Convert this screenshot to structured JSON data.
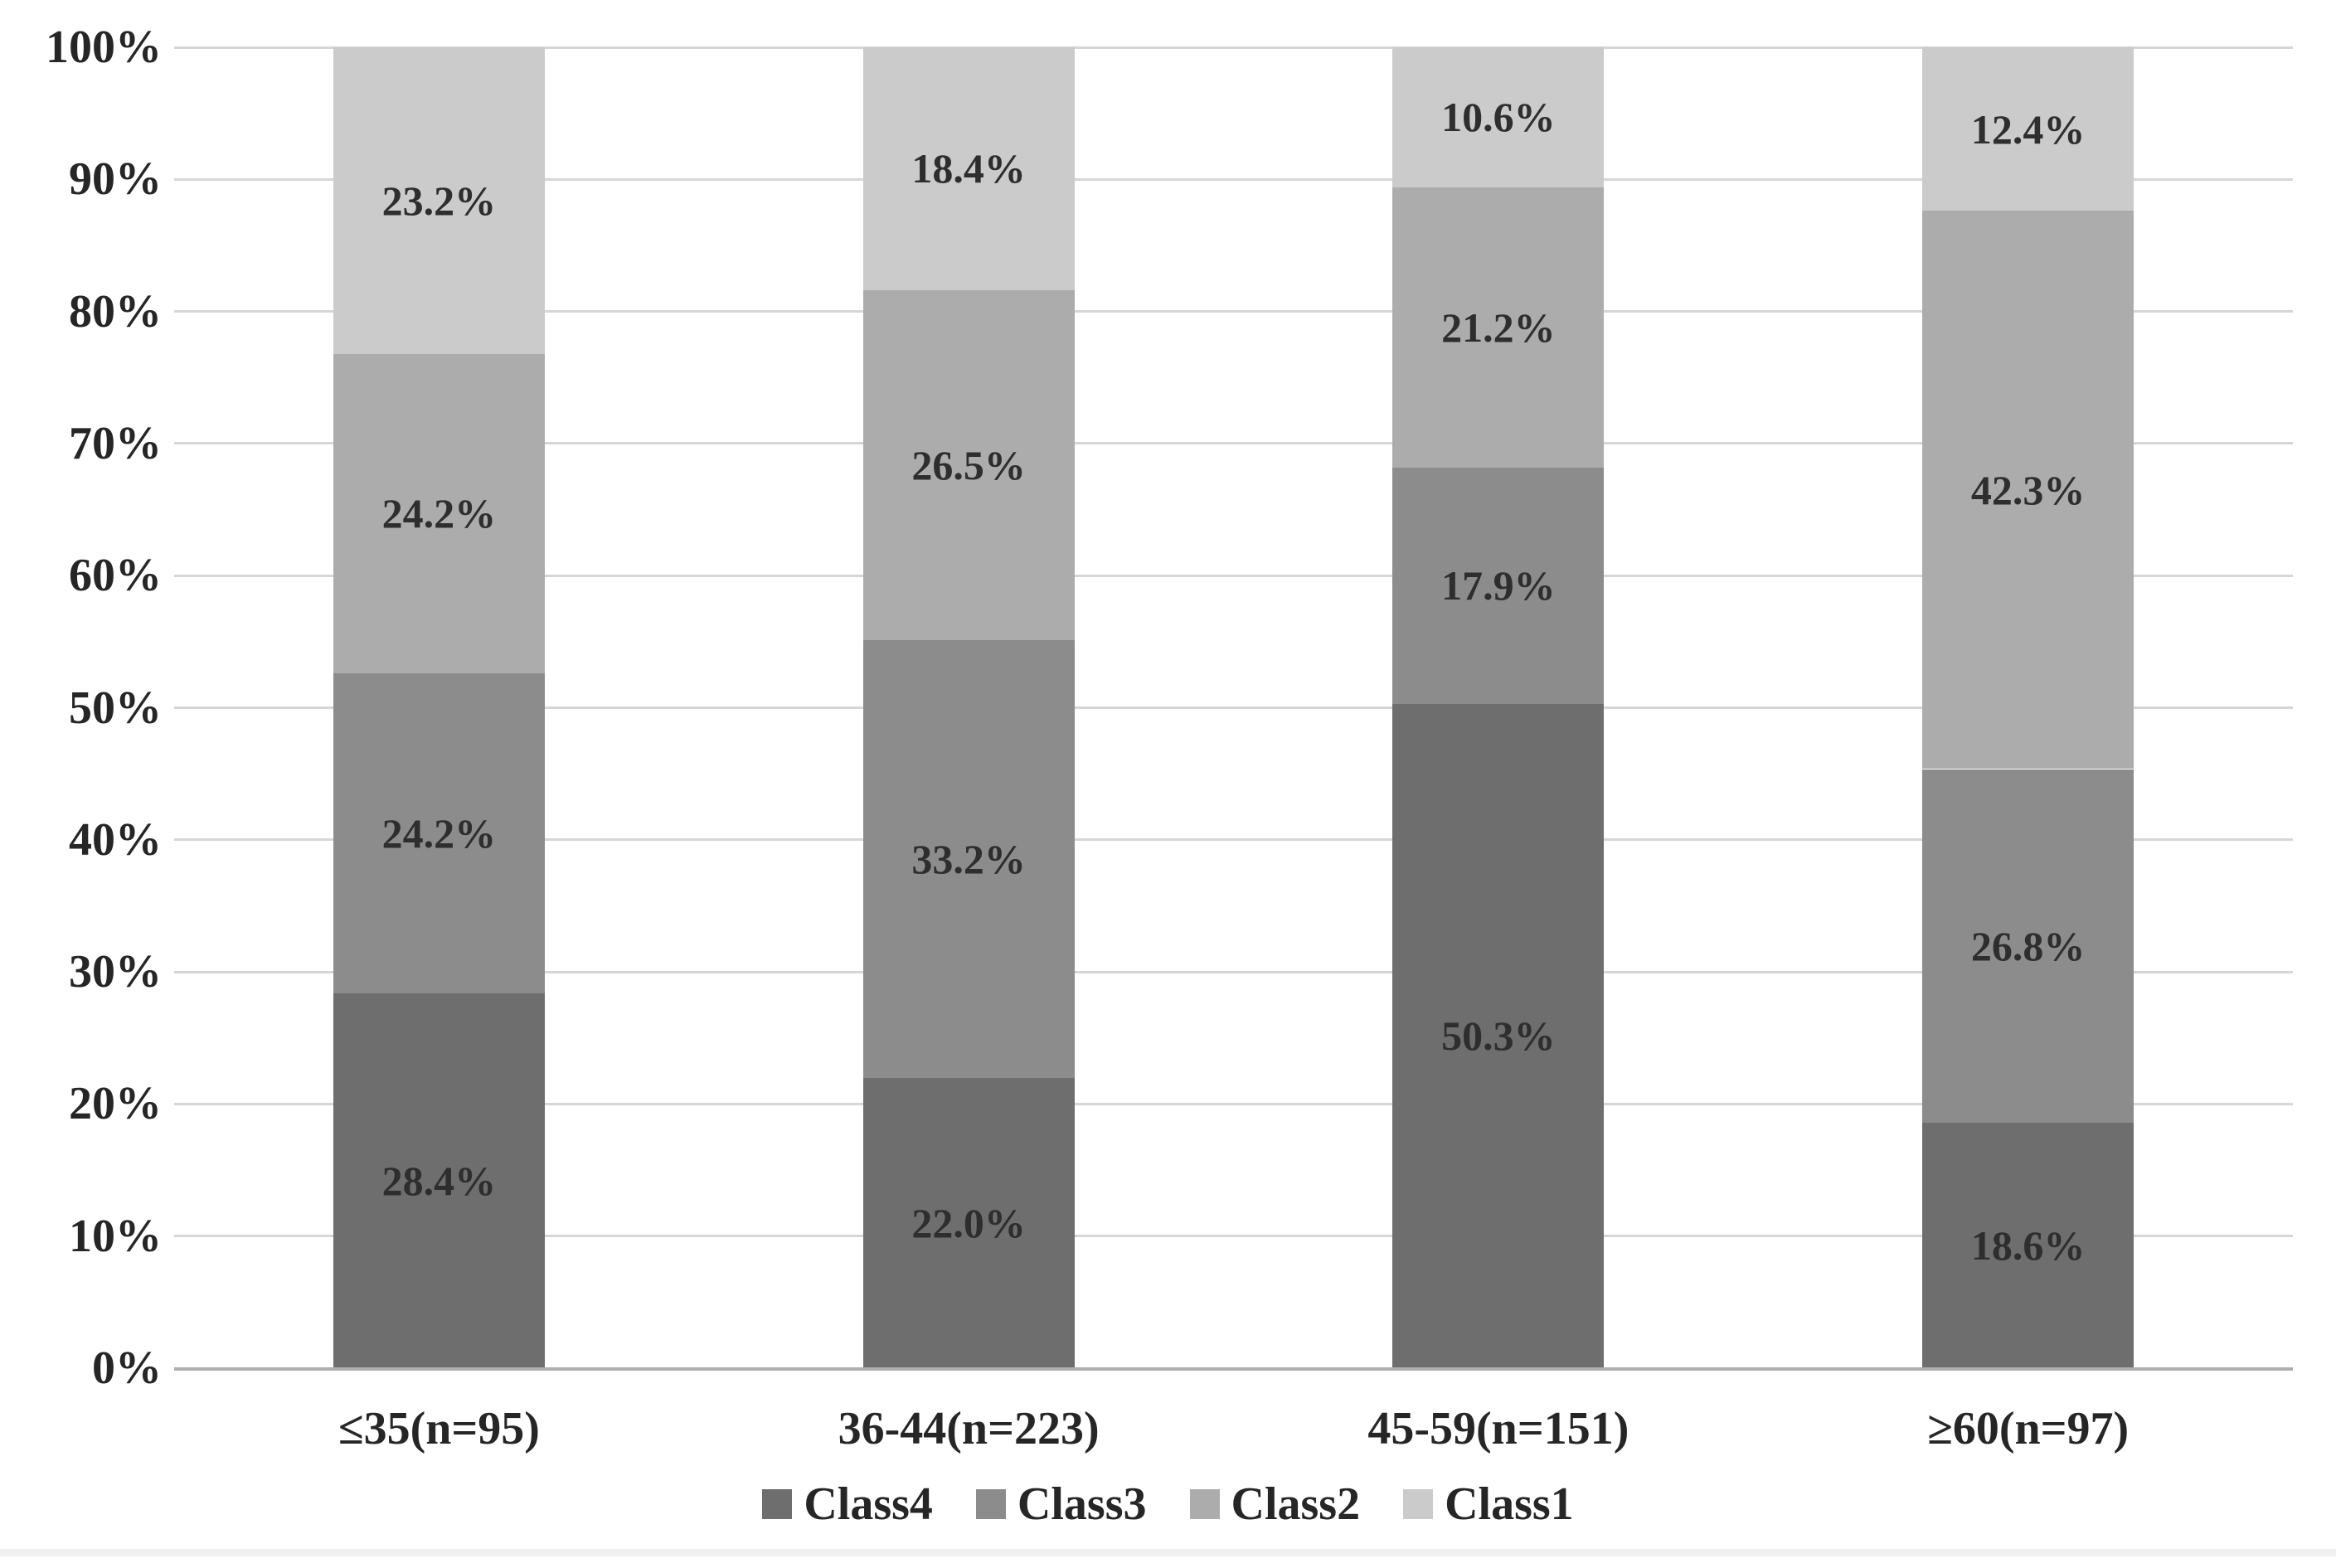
{
  "figure": {
    "background": "#ffffff",
    "gridline_color": "#d6d6d6",
    "axis_line_color": "#adadad",
    "label_text_color": "#2e2e2e",
    "tick_text_color": "#262626"
  },
  "chart_data": {
    "type": "bar",
    "variant": "stacked-100-percent",
    "title": "",
    "xlabel": "",
    "ylabel": "",
    "ylim": [
      0,
      100
    ],
    "grid": true,
    "legend_position": "bottom-center",
    "y_ticks": [
      "0%",
      "10%",
      "20%",
      "30%",
      "40%",
      "50%",
      "60%",
      "70%",
      "80%",
      "90%",
      "100%"
    ],
    "categories": [
      "≤35(n=95)",
      "36-44(n=223)",
      "45-59(n=151)",
      "≥60(n=97)"
    ],
    "series": [
      {
        "name": "Class4",
        "color": "#6e6e6e",
        "values": [
          28.4,
          22.0,
          50.3,
          18.6
        ],
        "labels": [
          "28.4%",
          "22.0%",
          "50.3%",
          "18.6%"
        ]
      },
      {
        "name": "Class3",
        "color": "#8c8c8c",
        "values": [
          24.2,
          33.2,
          17.9,
          26.8
        ],
        "labels": [
          "24.2%",
          "33.2%",
          "17.9%",
          "26.8%"
        ]
      },
      {
        "name": "Class2",
        "color": "#acacac",
        "values": [
          24.2,
          26.5,
          21.2,
          42.3
        ],
        "labels": [
          "24.2%",
          "26.5%",
          "21.2%",
          "42.3%"
        ]
      },
      {
        "name": "Class1",
        "color": "#cbcbcb",
        "values": [
          23.2,
          18.4,
          10.6,
          12.4
        ],
        "labels": [
          "23.2%",
          "18.4%",
          "10.6%",
          "12.4%"
        ]
      }
    ],
    "stack_order_bottom_to_top": [
      "Class4",
      "Class3",
      "Class2",
      "Class1"
    ],
    "legend_order": [
      "Class4",
      "Class3",
      "Class2",
      "Class1"
    ]
  }
}
